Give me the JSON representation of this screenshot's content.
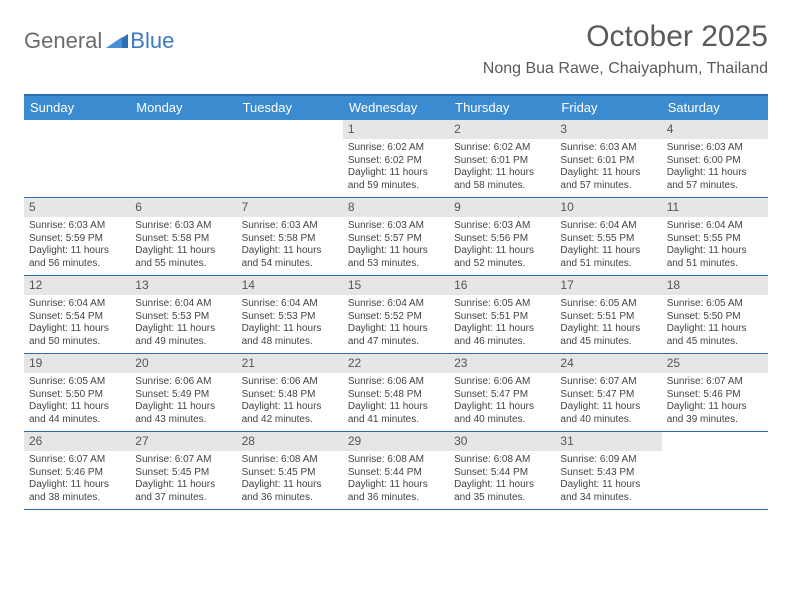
{
  "brand": {
    "part1": "General",
    "part2": "Blue"
  },
  "title": "October 2025",
  "location": "Nong Bua Rawe, Chaiyaphum, Thailand",
  "colors": {
    "header_bg": "#3b8bd0",
    "border": "#2a6db3",
    "daynum_bg": "#e6e6e6",
    "text": "#444444",
    "title_text": "#5a5a5a",
    "brand_grey": "#6b6b6b",
    "brand_blue": "#3b7bbf"
  },
  "day_headers": [
    "Sunday",
    "Monday",
    "Tuesday",
    "Wednesday",
    "Thursday",
    "Friday",
    "Saturday"
  ],
  "weeks": [
    [
      {
        "empty": true
      },
      {
        "empty": true
      },
      {
        "empty": true
      },
      {
        "n": "1",
        "rise": "Sunrise: 6:02 AM",
        "set": "Sunset: 6:02 PM",
        "dl": "Daylight: 11 hours and 59 minutes."
      },
      {
        "n": "2",
        "rise": "Sunrise: 6:02 AM",
        "set": "Sunset: 6:01 PM",
        "dl": "Daylight: 11 hours and 58 minutes."
      },
      {
        "n": "3",
        "rise": "Sunrise: 6:03 AM",
        "set": "Sunset: 6:01 PM",
        "dl": "Daylight: 11 hours and 57 minutes."
      },
      {
        "n": "4",
        "rise": "Sunrise: 6:03 AM",
        "set": "Sunset: 6:00 PM",
        "dl": "Daylight: 11 hours and 57 minutes."
      }
    ],
    [
      {
        "n": "5",
        "rise": "Sunrise: 6:03 AM",
        "set": "Sunset: 5:59 PM",
        "dl": "Daylight: 11 hours and 56 minutes."
      },
      {
        "n": "6",
        "rise": "Sunrise: 6:03 AM",
        "set": "Sunset: 5:58 PM",
        "dl": "Daylight: 11 hours and 55 minutes."
      },
      {
        "n": "7",
        "rise": "Sunrise: 6:03 AM",
        "set": "Sunset: 5:58 PM",
        "dl": "Daylight: 11 hours and 54 minutes."
      },
      {
        "n": "8",
        "rise": "Sunrise: 6:03 AM",
        "set": "Sunset: 5:57 PM",
        "dl": "Daylight: 11 hours and 53 minutes."
      },
      {
        "n": "9",
        "rise": "Sunrise: 6:03 AM",
        "set": "Sunset: 5:56 PM",
        "dl": "Daylight: 11 hours and 52 minutes."
      },
      {
        "n": "10",
        "rise": "Sunrise: 6:04 AM",
        "set": "Sunset: 5:55 PM",
        "dl": "Daylight: 11 hours and 51 minutes."
      },
      {
        "n": "11",
        "rise": "Sunrise: 6:04 AM",
        "set": "Sunset: 5:55 PM",
        "dl": "Daylight: 11 hours and 51 minutes."
      }
    ],
    [
      {
        "n": "12",
        "rise": "Sunrise: 6:04 AM",
        "set": "Sunset: 5:54 PM",
        "dl": "Daylight: 11 hours and 50 minutes."
      },
      {
        "n": "13",
        "rise": "Sunrise: 6:04 AM",
        "set": "Sunset: 5:53 PM",
        "dl": "Daylight: 11 hours and 49 minutes."
      },
      {
        "n": "14",
        "rise": "Sunrise: 6:04 AM",
        "set": "Sunset: 5:53 PM",
        "dl": "Daylight: 11 hours and 48 minutes."
      },
      {
        "n": "15",
        "rise": "Sunrise: 6:04 AM",
        "set": "Sunset: 5:52 PM",
        "dl": "Daylight: 11 hours and 47 minutes."
      },
      {
        "n": "16",
        "rise": "Sunrise: 6:05 AM",
        "set": "Sunset: 5:51 PM",
        "dl": "Daylight: 11 hours and 46 minutes."
      },
      {
        "n": "17",
        "rise": "Sunrise: 6:05 AM",
        "set": "Sunset: 5:51 PM",
        "dl": "Daylight: 11 hours and 45 minutes."
      },
      {
        "n": "18",
        "rise": "Sunrise: 6:05 AM",
        "set": "Sunset: 5:50 PM",
        "dl": "Daylight: 11 hours and 45 minutes."
      }
    ],
    [
      {
        "n": "19",
        "rise": "Sunrise: 6:05 AM",
        "set": "Sunset: 5:50 PM",
        "dl": "Daylight: 11 hours and 44 minutes."
      },
      {
        "n": "20",
        "rise": "Sunrise: 6:06 AM",
        "set": "Sunset: 5:49 PM",
        "dl": "Daylight: 11 hours and 43 minutes."
      },
      {
        "n": "21",
        "rise": "Sunrise: 6:06 AM",
        "set": "Sunset: 5:48 PM",
        "dl": "Daylight: 11 hours and 42 minutes."
      },
      {
        "n": "22",
        "rise": "Sunrise: 6:06 AM",
        "set": "Sunset: 5:48 PM",
        "dl": "Daylight: 11 hours and 41 minutes."
      },
      {
        "n": "23",
        "rise": "Sunrise: 6:06 AM",
        "set": "Sunset: 5:47 PM",
        "dl": "Daylight: 11 hours and 40 minutes."
      },
      {
        "n": "24",
        "rise": "Sunrise: 6:07 AM",
        "set": "Sunset: 5:47 PM",
        "dl": "Daylight: 11 hours and 40 minutes."
      },
      {
        "n": "25",
        "rise": "Sunrise: 6:07 AM",
        "set": "Sunset: 5:46 PM",
        "dl": "Daylight: 11 hours and 39 minutes."
      }
    ],
    [
      {
        "n": "26",
        "rise": "Sunrise: 6:07 AM",
        "set": "Sunset: 5:46 PM",
        "dl": "Daylight: 11 hours and 38 minutes."
      },
      {
        "n": "27",
        "rise": "Sunrise: 6:07 AM",
        "set": "Sunset: 5:45 PM",
        "dl": "Daylight: 11 hours and 37 minutes."
      },
      {
        "n": "28",
        "rise": "Sunrise: 6:08 AM",
        "set": "Sunset: 5:45 PM",
        "dl": "Daylight: 11 hours and 36 minutes."
      },
      {
        "n": "29",
        "rise": "Sunrise: 6:08 AM",
        "set": "Sunset: 5:44 PM",
        "dl": "Daylight: 11 hours and 36 minutes."
      },
      {
        "n": "30",
        "rise": "Sunrise: 6:08 AM",
        "set": "Sunset: 5:44 PM",
        "dl": "Daylight: 11 hours and 35 minutes."
      },
      {
        "n": "31",
        "rise": "Sunrise: 6:09 AM",
        "set": "Sunset: 5:43 PM",
        "dl": "Daylight: 11 hours and 34 minutes."
      },
      {
        "empty": true
      }
    ]
  ]
}
